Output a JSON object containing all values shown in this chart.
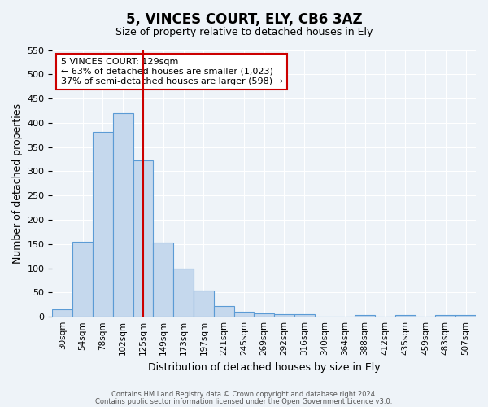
{
  "title": "5, VINCES COURT, ELY, CB6 3AZ",
  "subtitle": "Size of property relative to detached houses in Ely",
  "xlabel": "Distribution of detached houses by size in Ely",
  "ylabel": "Number of detached properties",
  "bin_labels": [
    "30sqm",
    "54sqm",
    "78sqm",
    "102sqm",
    "125sqm",
    "149sqm",
    "173sqm",
    "197sqm",
    "221sqm",
    "245sqm",
    "269sqm",
    "292sqm",
    "316sqm",
    "340sqm",
    "364sqm",
    "388sqm",
    "412sqm",
    "435sqm",
    "459sqm",
    "483sqm",
    "507sqm"
  ],
  "bar_heights": [
    15,
    155,
    382,
    420,
    323,
    153,
    100,
    54,
    22,
    10,
    7,
    5,
    5,
    0,
    0,
    4,
    0,
    3,
    0,
    4,
    4
  ],
  "bar_color": "#c5d8ed",
  "bar_edge_color": "#5b9bd5",
  "vline_x": 4,
  "vline_color": "#cc0000",
  "ylim": [
    0,
    550
  ],
  "yticks": [
    0,
    50,
    100,
    150,
    200,
    250,
    300,
    350,
    400,
    450,
    500,
    550
  ],
  "annotation_title": "5 VINCES COURT: 129sqm",
  "annotation_line1": "← 63% of detached houses are smaller (1,023)",
  "annotation_line2": "37% of semi-detached houses are larger (598) →",
  "annotation_box_color": "#ffffff",
  "annotation_box_edge": "#cc0000",
  "footer_line1": "Contains HM Land Registry data © Crown copyright and database right 2024.",
  "footer_line2": "Contains public sector information licensed under the Open Government Licence v3.0.",
  "bg_color": "#eef3f8",
  "grid_color": "#ffffff"
}
